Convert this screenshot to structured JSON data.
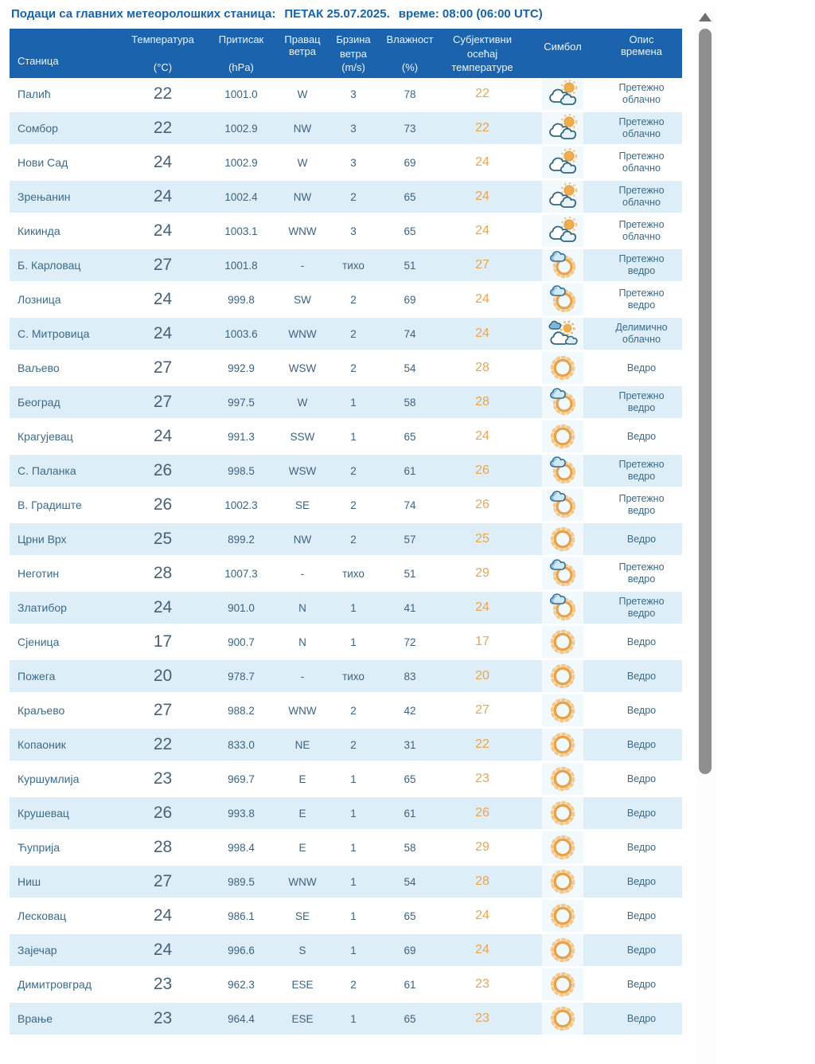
{
  "page": {
    "title": "Подаци са главних метеоролошких станица:",
    "date": "ПЕТАК 25.07.2025.",
    "time": "време: 08:00 (06:00 UTC)"
  },
  "colors": {
    "title_blue": "#1565ad",
    "header_bg": "#1c63ae",
    "row_alt_bg": "#ddeef8",
    "text_blue_gray": "#3d6383",
    "feels_like_orange": "#e9a64c",
    "sun_orange": "#e7a24a",
    "scrollbar_thumb": "#8f8f8f"
  },
  "table": {
    "headers": {
      "station": "Станица",
      "temp1": "Температура",
      "temp2": "(°C)",
      "pressure1": "Притисак",
      "pressure2": "(hPa)",
      "dir1": "Правац",
      "dir2": "ветра",
      "speed1": "Брзина",
      "speed2": "ветра",
      "speed3": "(m/s)",
      "hum1": "Влажност",
      "hum2": "(%)",
      "feel1": "Субјективни",
      "feel2": "осећај",
      "feel3": "температуре",
      "symbol": "Симбол",
      "desc1": "Опис",
      "desc2": "времена"
    },
    "rows": [
      {
        "station": "Палић",
        "temperature": "22",
        "pressure": "1001.0",
        "wind_direction": "W",
        "wind_speed": "3",
        "humidity": "78",
        "feels_like": "22",
        "icon": "clouds-sun",
        "description": "Претежно облачно"
      },
      {
        "station": "Сомбор",
        "temperature": "22",
        "pressure": "1002.9",
        "wind_direction": "NW",
        "wind_speed": "3",
        "humidity": "73",
        "feels_like": "22",
        "icon": "clouds-sun",
        "description": "Претежно облачно"
      },
      {
        "station": "Нови Сад",
        "temperature": "24",
        "pressure": "1002.9",
        "wind_direction": "W",
        "wind_speed": "3",
        "humidity": "69",
        "feels_like": "24",
        "icon": "clouds-sun",
        "description": "Претежно облачно"
      },
      {
        "station": "Зрењанин",
        "temperature": "24",
        "pressure": "1002.4",
        "wind_direction": "NW",
        "wind_speed": "2",
        "humidity": "65",
        "feels_like": "24",
        "icon": "clouds-sun",
        "description": "Претежно облачно"
      },
      {
        "station": "Кикинда",
        "temperature": "24",
        "pressure": "1003.1",
        "wind_direction": "WNW",
        "wind_speed": "3",
        "humidity": "65",
        "feels_like": "24",
        "icon": "clouds-sun",
        "description": "Претежно облачно"
      },
      {
        "station": "Б. Карловац",
        "temperature": "27",
        "pressure": "1001.8",
        "wind_direction": "-",
        "wind_speed": "тихо",
        "humidity": "51",
        "feels_like": "27",
        "icon": "sun-small-cloud",
        "description": "Претежно ведро"
      },
      {
        "station": "Лозница",
        "temperature": "24",
        "pressure": "999.8",
        "wind_direction": "SW",
        "wind_speed": "2",
        "humidity": "69",
        "feels_like": "24",
        "icon": "sun-small-cloud",
        "description": "Претежно ведро"
      },
      {
        "station": "С. Митровица",
        "temperature": "24",
        "pressure": "1003.6",
        "wind_direction": "WNW",
        "wind_speed": "2",
        "humidity": "74",
        "feels_like": "24",
        "icon": "sun-clouds",
        "description": "Делимично облачно"
      },
      {
        "station": "Ваљево",
        "temperature": "27",
        "pressure": "992.9",
        "wind_direction": "WSW",
        "wind_speed": "2",
        "humidity": "54",
        "feels_like": "28",
        "icon": "sun",
        "description": "Ведро"
      },
      {
        "station": "Београд",
        "temperature": "27",
        "pressure": "997.5",
        "wind_direction": "W",
        "wind_speed": "1",
        "humidity": "58",
        "feels_like": "28",
        "icon": "sun-small-cloud",
        "description": "Претежно ведро"
      },
      {
        "station": "Крагујевац",
        "temperature": "24",
        "pressure": "991.3",
        "wind_direction": "SSW",
        "wind_speed": "1",
        "humidity": "65",
        "feels_like": "24",
        "icon": "sun",
        "description": "Ведро"
      },
      {
        "station": "С. Паланка",
        "temperature": "26",
        "pressure": "998.5",
        "wind_direction": "WSW",
        "wind_speed": "2",
        "humidity": "61",
        "feels_like": "26",
        "icon": "sun-small-cloud",
        "description": "Претежно ведро"
      },
      {
        "station": "В. Градиште",
        "temperature": "26",
        "pressure": "1002.3",
        "wind_direction": "SE",
        "wind_speed": "2",
        "humidity": "74",
        "feels_like": "26",
        "icon": "sun-small-cloud",
        "description": "Претежно ведро"
      },
      {
        "station": "Црни Врх",
        "temperature": "25",
        "pressure": "899.2",
        "wind_direction": "NW",
        "wind_speed": "2",
        "humidity": "57",
        "feels_like": "25",
        "icon": "sun",
        "description": "Ведро"
      },
      {
        "station": "Неготин",
        "temperature": "28",
        "pressure": "1007.3",
        "wind_direction": "-",
        "wind_speed": "тихо",
        "humidity": "51",
        "feels_like": "29",
        "icon": "sun-small-cloud",
        "description": "Претежно ведро"
      },
      {
        "station": "Златибор",
        "temperature": "24",
        "pressure": "901.0",
        "wind_direction": "N",
        "wind_speed": "1",
        "humidity": "41",
        "feels_like": "24",
        "icon": "sun-small-cloud",
        "description": "Претежно ведро"
      },
      {
        "station": "Сјеница",
        "temperature": "17",
        "pressure": "900.7",
        "wind_direction": "N",
        "wind_speed": "1",
        "humidity": "72",
        "feels_like": "17",
        "icon": "sun",
        "description": "Ведро"
      },
      {
        "station": "Пожега",
        "temperature": "20",
        "pressure": "978.7",
        "wind_direction": "-",
        "wind_speed": "тихо",
        "humidity": "83",
        "feels_like": "20",
        "icon": "sun",
        "description": "Ведро"
      },
      {
        "station": "Краљево",
        "temperature": "27",
        "pressure": "988.2",
        "wind_direction": "WNW",
        "wind_speed": "2",
        "humidity": "42",
        "feels_like": "27",
        "icon": "sun",
        "description": "Ведро"
      },
      {
        "station": "Копаоник",
        "temperature": "22",
        "pressure": "833.0",
        "wind_direction": "NE",
        "wind_speed": "2",
        "humidity": "31",
        "feels_like": "22",
        "icon": "sun",
        "description": "Ведро"
      },
      {
        "station": "Куршумлија",
        "temperature": "23",
        "pressure": "969.7",
        "wind_direction": "E",
        "wind_speed": "1",
        "humidity": "65",
        "feels_like": "23",
        "icon": "sun",
        "description": "Ведро"
      },
      {
        "station": "Крушевац",
        "temperature": "26",
        "pressure": "993.8",
        "wind_direction": "E",
        "wind_speed": "1",
        "humidity": "61",
        "feels_like": "26",
        "icon": "sun",
        "description": "Ведро"
      },
      {
        "station": "Ћуприја",
        "temperature": "28",
        "pressure": "998.4",
        "wind_direction": "E",
        "wind_speed": "1",
        "humidity": "58",
        "feels_like": "29",
        "icon": "sun",
        "description": "Ведро"
      },
      {
        "station": "Ниш",
        "temperature": "27",
        "pressure": "989.5",
        "wind_direction": "WNW",
        "wind_speed": "1",
        "humidity": "54",
        "feels_like": "28",
        "icon": "sun",
        "description": "Ведро"
      },
      {
        "station": "Лесковац",
        "temperature": "24",
        "pressure": "986.1",
        "wind_direction": "SE",
        "wind_speed": "1",
        "humidity": "65",
        "feels_like": "24",
        "icon": "sun",
        "description": "Ведро"
      },
      {
        "station": "Зајечар",
        "temperature": "24",
        "pressure": "996.6",
        "wind_direction": "S",
        "wind_speed": "1",
        "humidity": "69",
        "feels_like": "24",
        "icon": "sun",
        "description": "Ведро"
      },
      {
        "station": "Димитровград",
        "temperature": "23",
        "pressure": "962.3",
        "wind_direction": "ESE",
        "wind_speed": "2",
        "humidity": "61",
        "feels_like": "23",
        "icon": "sun",
        "description": "Ведро"
      },
      {
        "station": "Врање",
        "temperature": "23",
        "pressure": "964.4",
        "wind_direction": "ESE",
        "wind_speed": "1",
        "humidity": "65",
        "feels_like": "23",
        "icon": "sun",
        "description": "Ведро"
      }
    ]
  }
}
